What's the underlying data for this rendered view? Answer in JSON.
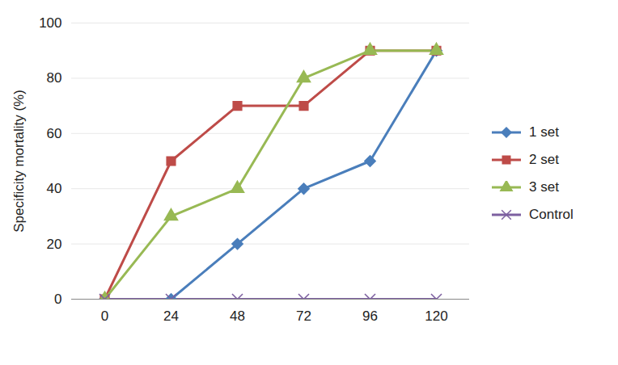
{
  "chart_data": {
    "type": "line",
    "y_label": "Specificity mortality (%)",
    "categories": [
      "0",
      "24",
      "48",
      "72",
      "96",
      "120"
    ],
    "series": [
      {
        "name": "1 set",
        "color": "#4a7ebb",
        "marker": "diamond",
        "values": [
          0,
          0,
          20,
          40,
          50,
          90
        ]
      },
      {
        "name": "2 set",
        "color": "#be4b48",
        "marker": "square",
        "values": [
          0,
          50,
          70,
          70,
          90,
          90
        ]
      },
      {
        "name": "3 set",
        "color": "#98b954",
        "marker": "triangle",
        "values": [
          0,
          30,
          40,
          80,
          90,
          90
        ]
      },
      {
        "name": "Control",
        "color": "#7d60a0",
        "marker": "x",
        "values": [
          0,
          0,
          0,
          0,
          0,
          0
        ]
      }
    ],
    "ylim": [
      0,
      100
    ],
    "yticks": [
      0,
      20,
      40,
      60,
      80,
      100
    ],
    "grid": true,
    "legend": "right"
  }
}
